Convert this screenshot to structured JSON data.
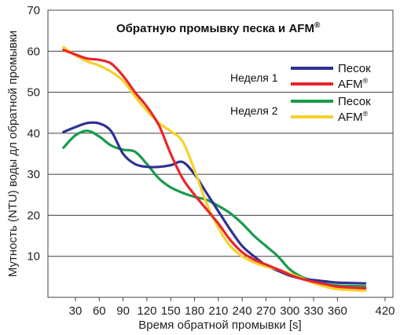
{
  "chart_data": {
    "type": "line",
    "title": "Обратную промывку песка и AFM",
    "title_superscript": "®",
    "xlabel": "Время обратной промывки [s]",
    "ylabel": "Мутность (NTU) воды дл обратной промывки",
    "xlim": [
      0,
      420
    ],
    "ylim": [
      0,
      70
    ],
    "xticks": [
      30,
      60,
      90,
      120,
      150,
      180,
      210,
      240,
      270,
      300,
      330,
      360,
      420
    ],
    "yticks": [
      10,
      20,
      30,
      40,
      50,
      60,
      70
    ],
    "grid": "horizontal",
    "legend_position": "top-right",
    "legend_groups": [
      "Неделя 1",
      "Неделя 2"
    ],
    "series": [
      {
        "name": "Песок",
        "week": "Неделя 1",
        "color": "#2e3192",
        "points": [
          [
            15,
            40.3
          ],
          [
            30,
            41.5
          ],
          [
            45,
            42.5
          ],
          [
            60,
            42.4
          ],
          [
            75,
            40.5
          ],
          [
            90,
            35
          ],
          [
            105,
            32.5
          ],
          [
            120,
            31.8
          ],
          [
            135,
            31.8
          ],
          [
            150,
            32.2
          ],
          [
            165,
            33
          ],
          [
            180,
            30
          ],
          [
            195,
            25.5
          ],
          [
            210,
            21
          ],
          [
            225,
            16.5
          ],
          [
            240,
            12.5
          ],
          [
            255,
            10
          ],
          [
            270,
            7.8
          ],
          [
            285,
            6.5
          ],
          [
            300,
            5.3
          ],
          [
            315,
            4.6
          ],
          [
            330,
            4.2
          ],
          [
            345,
            3.9
          ],
          [
            360,
            3.6
          ],
          [
            395,
            3.4
          ]
        ]
      },
      {
        "name": "AFM",
        "name_superscript": "®",
        "week": "Неделя 1",
        "color": "#e8262b",
        "points": [
          [
            15,
            60.3
          ],
          [
            30,
            59.2
          ],
          [
            45,
            58.2
          ],
          [
            60,
            57.9
          ],
          [
            75,
            57
          ],
          [
            90,
            54
          ],
          [
            105,
            50
          ],
          [
            120,
            46.5
          ],
          [
            135,
            42
          ],
          [
            150,
            35
          ],
          [
            165,
            29
          ],
          [
            180,
            25
          ],
          [
            195,
            21.5
          ],
          [
            210,
            18
          ],
          [
            225,
            14
          ],
          [
            240,
            11
          ],
          [
            255,
            9.2
          ],
          [
            270,
            8
          ],
          [
            285,
            6.8
          ],
          [
            300,
            5.5
          ],
          [
            315,
            4.5
          ],
          [
            330,
            3.8
          ],
          [
            345,
            3.2
          ],
          [
            360,
            2.6
          ],
          [
            395,
            2.2
          ]
        ]
      },
      {
        "name": "Песок",
        "week": "Неделя 2",
        "color": "#1a9b4b",
        "points": [
          [
            15,
            36.5
          ],
          [
            30,
            39.5
          ],
          [
            45,
            40.6
          ],
          [
            60,
            39.2
          ],
          [
            75,
            37
          ],
          [
            90,
            36
          ],
          [
            105,
            35.5
          ],
          [
            120,
            32.5
          ],
          [
            135,
            29
          ],
          [
            150,
            26.8
          ],
          [
            165,
            25.5
          ],
          [
            180,
            24.5
          ],
          [
            195,
            23.8
          ],
          [
            210,
            22.3
          ],
          [
            225,
            20.5
          ],
          [
            240,
            18
          ],
          [
            255,
            15
          ],
          [
            270,
            12.5
          ],
          [
            285,
            10
          ],
          [
            300,
            6.8
          ],
          [
            315,
            5
          ],
          [
            330,
            4
          ],
          [
            345,
            3.3
          ],
          [
            360,
            2.9
          ],
          [
            395,
            2.7
          ]
        ]
      },
      {
        "name": "AFM",
        "name_superscript": "®",
        "week": "Неделя 2",
        "color": "#f6d12a",
        "points": [
          [
            15,
            61
          ],
          [
            30,
            59
          ],
          [
            45,
            57.5
          ],
          [
            60,
            56.5
          ],
          [
            75,
            55
          ],
          [
            90,
            52.8
          ],
          [
            105,
            49
          ],
          [
            120,
            45.5
          ],
          [
            135,
            42.5
          ],
          [
            150,
            40.5
          ],
          [
            165,
            38
          ],
          [
            180,
            31
          ],
          [
            195,
            23
          ],
          [
            210,
            17
          ],
          [
            225,
            12.5
          ],
          [
            240,
            10
          ],
          [
            255,
            8.5
          ],
          [
            270,
            7.5
          ],
          [
            285,
            6.8
          ],
          [
            300,
            5.8
          ],
          [
            315,
            4.7
          ],
          [
            330,
            3.5
          ],
          [
            345,
            2.6
          ],
          [
            360,
            2
          ],
          [
            395,
            1.6
          ]
        ]
      }
    ]
  }
}
